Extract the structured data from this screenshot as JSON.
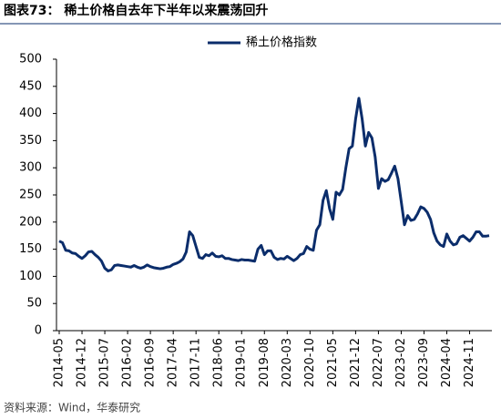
{
  "chart_data": {
    "type": "line",
    "title": "图表73：  稀土价格自去年下半年以来震荡回升",
    "source": "资料来源：Wind，华泰研究",
    "categories": [
      "2014-05",
      null,
      null,
      null,
      null,
      null,
      null,
      "2014-12",
      null,
      null,
      null,
      null,
      null,
      null,
      "2015-07",
      null,
      null,
      null,
      null,
      null,
      null,
      "2016-02",
      null,
      null,
      null,
      null,
      null,
      null,
      "2016-09",
      null,
      null,
      null,
      null,
      null,
      null,
      "2017-04",
      null,
      null,
      null,
      null,
      null,
      null,
      "2017-11",
      null,
      null,
      null,
      null,
      null,
      null,
      "2018-06",
      null,
      null,
      null,
      null,
      null,
      null,
      "2019-01",
      null,
      null,
      null,
      null,
      null,
      null,
      "2019-08",
      null,
      null,
      null,
      null,
      null,
      null,
      "2020-03",
      null,
      null,
      null,
      null,
      null,
      null,
      "2020-10",
      null,
      null,
      null,
      null,
      null,
      null,
      "2021-05",
      null,
      null,
      null,
      null,
      null,
      null,
      "2021-12",
      null,
      null,
      null,
      null,
      null,
      null,
      "2022-07",
      null,
      null,
      null,
      null,
      null,
      null,
      "2023-02",
      null,
      null,
      null,
      null,
      null,
      null,
      "2023-09",
      null,
      null,
      null,
      null,
      null,
      null,
      "2024-04",
      null,
      null,
      null,
      null,
      null,
      null,
      "2024-11",
      null,
      null,
      null,
      null,
      null,
      null
    ],
    "series": [
      {
        "name": "稀土价格指数",
        "color": "#0b2d6b",
        "values": [
          165,
          162,
          148,
          147,
          143,
          142,
          137,
          133,
          138,
          145,
          146,
          140,
          135,
          128,
          115,
          110,
          112,
          120,
          121,
          120,
          119,
          118,
          117,
          120,
          117,
          115,
          117,
          121,
          118,
          116,
          115,
          114,
          115,
          117,
          118,
          122,
          124,
          127,
          132,
          145,
          182,
          175,
          155,
          135,
          133,
          140,
          138,
          143,
          137,
          136,
          138,
          133,
          133,
          131,
          130,
          129,
          131,
          130,
          130,
          129,
          128,
          150,
          157,
          140,
          147,
          147,
          135,
          131,
          133,
          132,
          137,
          133,
          129,
          133,
          140,
          142,
          155,
          150,
          148,
          185,
          195,
          240,
          258,
          225,
          205,
          255,
          250,
          260,
          300,
          335,
          340,
          390,
          428,
          390,
          340,
          365,
          355,
          320,
          262,
          280,
          275,
          278,
          290,
          303,
          280,
          238,
          195,
          212,
          203,
          205,
          215,
          228,
          225,
          218,
          205,
          180,
          165,
          158,
          155,
          178,
          165,
          158,
          160,
          172,
          175,
          170,
          165,
          172,
          182,
          182,
          174,
          174,
          175
        ]
      }
    ],
    "ylim": [
      0,
      500
    ],
    "yticks": [
      0,
      50,
      100,
      150,
      200,
      250,
      300,
      350,
      400,
      450,
      500
    ],
    "legend": "top"
  }
}
